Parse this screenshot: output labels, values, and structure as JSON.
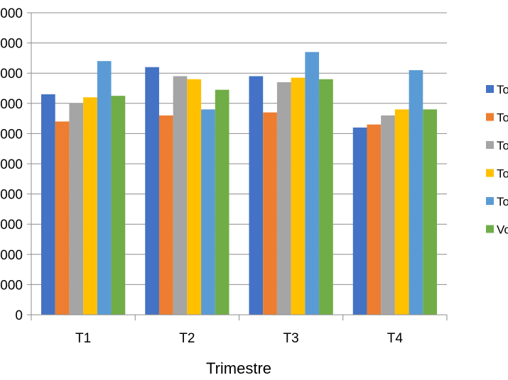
{
  "chart_data": {
    "type": "bar",
    "title": "",
    "xlabel": "Trimestre",
    "ylabel": "",
    "categories": [
      "T1",
      "T2",
      "T3",
      "T4"
    ],
    "y_tick_labels": [
      "0",
      "000",
      "000",
      "000",
      "000",
      "000",
      "000",
      "000",
      "000",
      "000",
      "000"
    ],
    "ylim": [
      0,
      10
    ],
    "grid": true,
    "legend_position": "right",
    "series": [
      {
        "name": "To",
        "color": "#4472C4",
        "values": [
          7.3,
          8.2,
          7.9,
          6.2
        ]
      },
      {
        "name": "To",
        "color": "#ED7D31",
        "values": [
          6.4,
          6.6,
          6.7,
          6.3
        ]
      },
      {
        "name": "To",
        "color": "#A5A5A5",
        "values": [
          7.0,
          7.9,
          7.7,
          6.6
        ]
      },
      {
        "name": "To",
        "color": "#FFC000",
        "values": [
          7.2,
          7.8,
          7.85,
          6.8
        ]
      },
      {
        "name": "To",
        "color": "#5B9BD5",
        "values": [
          8.4,
          6.8,
          8.7,
          8.1
        ]
      },
      {
        "name": "Vo",
        "color": "#70AD47",
        "values": [
          7.25,
          7.45,
          7.8,
          6.8
        ]
      }
    ]
  }
}
